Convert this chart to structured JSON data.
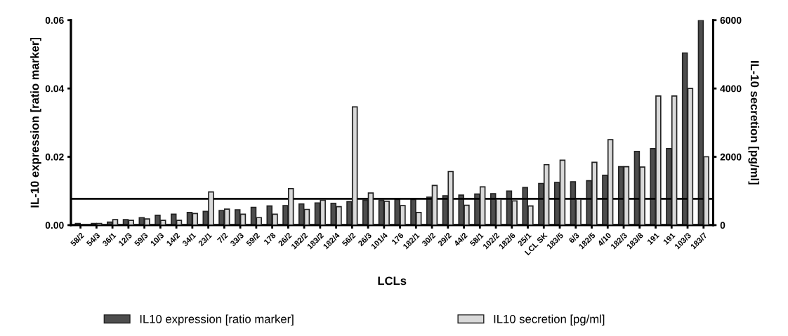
{
  "chart_data": {
    "type": "bar",
    "xlabel": "LCLs",
    "ylabel": "IL-10 expression [ratio marker]",
    "y2label": "IL-10 secretion [pg/ml]",
    "categories": [
      "58/2",
      "54/3",
      "36/1",
      "12/3",
      "59/3",
      "10/3",
      "14/2",
      "34/1",
      "23/1",
      "7/2",
      "33/3",
      "59/2",
      "178",
      "26/2",
      "182/2",
      "183/2",
      "182/4",
      "56/2",
      "26/3",
      "101/4",
      "176",
      "182/1",
      "30/2",
      "29/2",
      "44/2",
      "58/1",
      "102/2",
      "182/6",
      "25/1",
      "LCL SK",
      "183/5",
      "6/3",
      "182/5",
      "4/10",
      "182/3",
      "183/8",
      "191",
      "191",
      "103/3",
      "183/7"
    ],
    "series": [
      {
        "name": "IL10 expression [ratio marker]",
        "color": "#4d4d4d",
        "values": [
          0.0005,
          0.0005,
          0.0009,
          0.0016,
          0.0022,
          0.0029,
          0.0032,
          0.0037,
          0.004,
          0.0043,
          0.0045,
          0.0052,
          0.0056,
          0.0057,
          0.0062,
          0.0065,
          0.0064,
          0.0069,
          0.0073,
          0.0073,
          0.0075,
          0.0075,
          0.0082,
          0.0086,
          0.0088,
          0.0091,
          0.0092,
          0.01,
          0.011,
          0.0122,
          0.0125,
          0.0127,
          0.013,
          0.0146,
          0.0171,
          0.0216,
          0.0224,
          0.0224,
          0.0504,
          0.06
        ]
      },
      {
        "name": "IL10 secretion [pg/ml]",
        "color": "#d9d9d9",
        "axis": "y2",
        "values": [
          null,
          50,
          160,
          140,
          180,
          140,
          140,
          340,
          970,
          470,
          320,
          220,
          320,
          1070,
          460,
          730,
          540,
          3460,
          940,
          700,
          570,
          370,
          1160,
          1570,
          580,
          1120,
          760,
          710,
          560,
          1770,
          1900,
          760,
          1840,
          2500,
          1710,
          1700,
          3780,
          3780,
          4000,
          2000
        ]
      }
    ],
    "ylim": [
      0,
      0.06
    ],
    "yticks": [
      {
        "value": 0,
        "label": "0.00"
      },
      {
        "value": 0.02,
        "label": "0.02"
      },
      {
        "value": 0.04,
        "label": "0.04"
      },
      {
        "value": 0.06,
        "label": "0.06"
      }
    ],
    "y2lim": [
      0,
      6000
    ],
    "y2ticks": [
      0,
      2000,
      4000,
      6000
    ],
    "ref_lines": [
      {
        "axis": "y",
        "value": 0.0077,
        "color": "#000000"
      }
    ],
    "legend": "bottom",
    "grid": false
  }
}
